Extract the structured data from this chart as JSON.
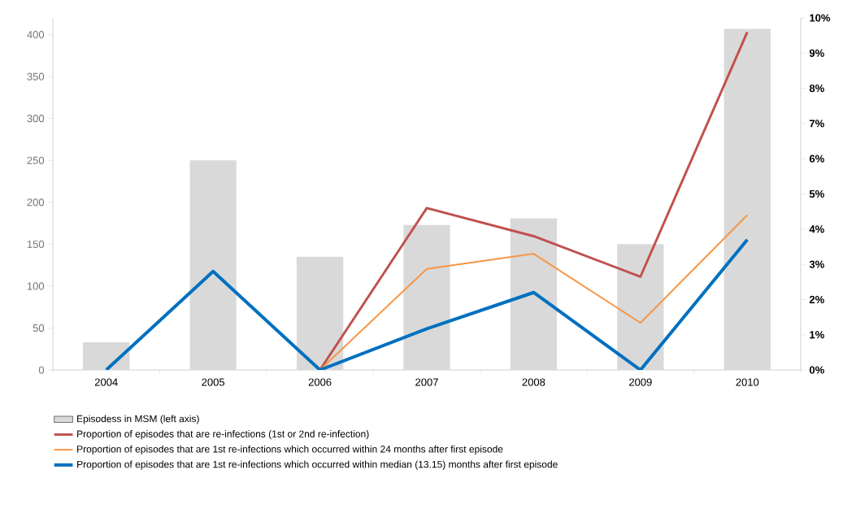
{
  "chart_data": {
    "type": "bar",
    "categories": [
      "2004",
      "2005",
      "2006",
      "2007",
      "2008",
      "2009",
      "2010"
    ],
    "series": [
      {
        "name": "Episodess in MSM (left axis)",
        "color": "#d9d9d9",
        "values": [
          33,
          250,
          135,
          173,
          181,
          150,
          407
        ]
      },
      {
        "name": "Proportion of episodes that are re-infections (1st or 2nd re-infection)",
        "type": "line",
        "axis": "y2",
        "color": "#c0504d",
        "values": [
          null,
          null,
          0,
          4.6,
          3.8,
          2.65,
          9.6
        ]
      },
      {
        "name": "Proportion of episodes that are 1st re-infections which occurred within 24 months after first episode",
        "type": "line",
        "axis": "y2",
        "color": "#f79646",
        "values": [
          null,
          null,
          0,
          2.87,
          3.3,
          1.34,
          4.4
        ]
      },
      {
        "name": "Proportion of episodes that are 1st re-infections which occurred within median (13.15) months after first episode",
        "type": "line",
        "axis": "y2",
        "color": "#0070c0",
        "values": [
          0,
          2.8,
          0,
          1.17,
          2.2,
          0,
          3.7
        ]
      }
    ],
    "ylim": [
      0,
      420
    ],
    "yticks": [
      0,
      50,
      100,
      150,
      200,
      250,
      300,
      350,
      400
    ],
    "y2lim": [
      0,
      10
    ],
    "y2ticks": [
      {
        "value": 0,
        "label": "0%"
      },
      {
        "value": 1,
        "label": "1%"
      },
      {
        "value": 2,
        "label": "2%"
      },
      {
        "value": 3,
        "label": "3%"
      },
      {
        "value": 4,
        "label": "4%"
      },
      {
        "value": 5,
        "label": "5%"
      },
      {
        "value": 6,
        "label": "6%"
      },
      {
        "value": 7,
        "label": "7%"
      },
      {
        "value": 8,
        "label": "8%"
      },
      {
        "value": 9,
        "label": "9%"
      },
      {
        "value": 10,
        "label": "10%"
      }
    ],
    "legend": "bottom"
  }
}
